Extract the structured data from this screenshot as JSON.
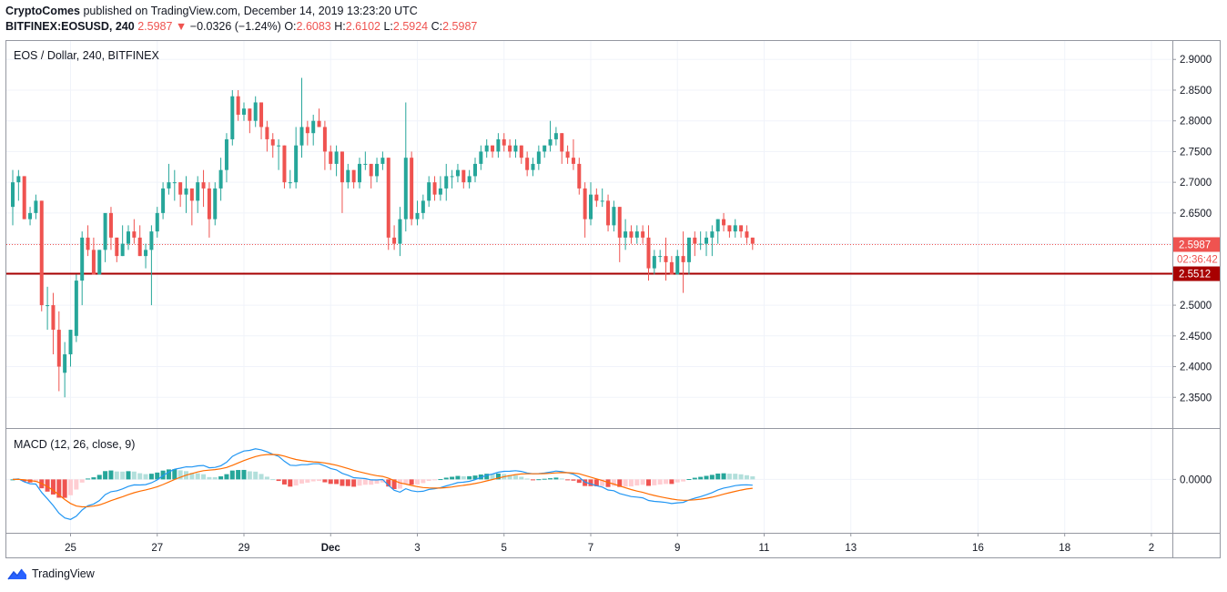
{
  "header": {
    "author": "CryptoComes",
    "published_text": "published on TradingView.com, December 14, 2019 13:23:20 UTC",
    "symbol": "BITFINEX:EOSUSD, 240",
    "last": "2.5987",
    "arrow": "▼",
    "change": "−0.0326 (−1.24%)",
    "o_label": "O:",
    "o_val": "2.6083",
    "h_label": "H:",
    "h_val": "2.6102",
    "l_label": "L:",
    "l_val": "2.5924",
    "c_label": "C:",
    "c_val": "2.5987"
  },
  "chart_data": [
    {
      "type": "candlestick",
      "title": "EOS / Dollar, 240, BITFINEX",
      "ylim": [
        2.3,
        2.93
      ],
      "y_ticks": [
        "2.9000",
        "2.8500",
        "2.8000",
        "2.7500",
        "2.7000",
        "2.6500",
        "2.6000",
        "2.5500",
        "2.5000",
        "2.4500",
        "2.4000",
        "2.3500"
      ],
      "x_ticks": [
        "25",
        "27",
        "29",
        "Dec",
        "3",
        "5",
        "7",
        "9",
        "11",
        "13",
        "16",
        "18",
        "2"
      ],
      "x_tick_index": [
        10,
        25,
        40,
        55,
        70,
        85,
        100,
        115,
        130,
        145,
        167,
        182,
        197
      ],
      "current_price": "2.5987",
      "countdown": "02:36:42",
      "support_level": "2.5512",
      "grid": true,
      "colors": {
        "up": "#26a69a",
        "down": "#ef5350",
        "support": "#a80000"
      },
      "candles_ohlc": [
        [
          2.66,
          2.72,
          2.63,
          2.7
        ],
        [
          2.7,
          2.72,
          2.67,
          2.71
        ],
        [
          2.71,
          2.71,
          2.64,
          2.64
        ],
        [
          2.64,
          2.66,
          2.63,
          2.65
        ],
        [
          2.65,
          2.68,
          2.64,
          2.67
        ],
        [
          2.67,
          2.67,
          2.49,
          2.5
        ],
        [
          2.5,
          2.53,
          2.46,
          2.5
        ],
        [
          2.5,
          2.52,
          2.42,
          2.46
        ],
        [
          2.46,
          2.49,
          2.36,
          2.4
        ],
        [
          2.39,
          2.44,
          2.35,
          2.42
        ],
        [
          2.42,
          2.45,
          2.4,
          2.46
        ],
        [
          2.45,
          2.55,
          2.44,
          2.54
        ],
        [
          2.54,
          2.62,
          2.5,
          2.61
        ],
        [
          2.61,
          2.63,
          2.58,
          2.59
        ],
        [
          2.59,
          2.61,
          2.56,
          2.55
        ],
        [
          2.55,
          2.59,
          2.55,
          2.59
        ],
        [
          2.59,
          2.64,
          2.57,
          2.65
        ],
        [
          2.65,
          2.66,
          2.59,
          2.61
        ],
        [
          2.61,
          2.61,
          2.57,
          2.58
        ],
        [
          2.58,
          2.63,
          2.58,
          2.6
        ],
        [
          2.6,
          2.63,
          2.59,
          2.62
        ],
        [
          2.62,
          2.64,
          2.6,
          2.61
        ],
        [
          2.61,
          2.63,
          2.58,
          2.58
        ],
        [
          2.58,
          2.6,
          2.56,
          2.59
        ],
        [
          2.59,
          2.63,
          2.5,
          2.62
        ],
        [
          2.62,
          2.66,
          2.61,
          2.65
        ],
        [
          2.65,
          2.7,
          2.64,
          2.69
        ],
        [
          2.69,
          2.73,
          2.68,
          2.7
        ],
        [
          2.7,
          2.72,
          2.67,
          2.7
        ],
        [
          2.7,
          2.7,
          2.66,
          2.68
        ],
        [
          2.68,
          2.71,
          2.65,
          2.69
        ],
        [
          2.69,
          2.69,
          2.63,
          2.67
        ],
        [
          2.67,
          2.71,
          2.65,
          2.7
        ],
        [
          2.7,
          2.72,
          2.66,
          2.69
        ],
        [
          2.69,
          2.7,
          2.61,
          2.64
        ],
        [
          2.64,
          2.7,
          2.63,
          2.69
        ],
        [
          2.69,
          2.74,
          2.67,
          2.72
        ],
        [
          2.72,
          2.78,
          2.7,
          2.77
        ],
        [
          2.77,
          2.85,
          2.76,
          2.84
        ],
        [
          2.84,
          2.85,
          2.8,
          2.81
        ],
        [
          2.81,
          2.83,
          2.8,
          2.82
        ],
        [
          2.82,
          2.82,
          2.78,
          2.8
        ],
        [
          2.8,
          2.84,
          2.79,
          2.83
        ],
        [
          2.83,
          2.83,
          2.77,
          2.79
        ],
        [
          2.79,
          2.8,
          2.75,
          2.77
        ],
        [
          2.77,
          2.78,
          2.74,
          2.76
        ],
        [
          2.76,
          2.77,
          2.72,
          2.76
        ],
        [
          2.76,
          2.76,
          2.69,
          2.7
        ],
        [
          2.7,
          2.72,
          2.69,
          2.7
        ],
        [
          2.7,
          2.79,
          2.69,
          2.76
        ],
        [
          2.76,
          2.87,
          2.74,
          2.79
        ],
        [
          2.79,
          2.8,
          2.76,
          2.78
        ],
        [
          2.78,
          2.81,
          2.76,
          2.8
        ],
        [
          2.8,
          2.82,
          2.79,
          2.79
        ],
        [
          2.79,
          2.8,
          2.72,
          2.75
        ],
        [
          2.75,
          2.76,
          2.72,
          2.73
        ],
        [
          2.73,
          2.76,
          2.71,
          2.75
        ],
        [
          2.75,
          2.75,
          2.65,
          2.7
        ],
        [
          2.7,
          2.73,
          2.69,
          2.72
        ],
        [
          2.72,
          2.72,
          2.69,
          2.7
        ],
        [
          2.7,
          2.74,
          2.69,
          2.73
        ],
        [
          2.73,
          2.75,
          2.72,
          2.73
        ],
        [
          2.73,
          2.73,
          2.69,
          2.71
        ],
        [
          2.71,
          2.74,
          2.7,
          2.73
        ],
        [
          2.73,
          2.75,
          2.72,
          2.74
        ],
        [
          2.74,
          2.74,
          2.59,
          2.61
        ],
        [
          2.61,
          2.63,
          2.59,
          2.6
        ],
        [
          2.6,
          2.66,
          2.58,
          2.64
        ],
        [
          2.64,
          2.83,
          2.62,
          2.74
        ],
        [
          2.74,
          2.75,
          2.63,
          2.64
        ],
        [
          2.64,
          2.67,
          2.63,
          2.65
        ],
        [
          2.65,
          2.68,
          2.64,
          2.67
        ],
        [
          2.67,
          2.71,
          2.66,
          2.7
        ],
        [
          2.7,
          2.71,
          2.67,
          2.68
        ],
        [
          2.68,
          2.71,
          2.67,
          2.69
        ],
        [
          2.69,
          2.73,
          2.67,
          2.71
        ],
        [
          2.71,
          2.72,
          2.69,
          2.71
        ],
        [
          2.71,
          2.73,
          2.7,
          2.72
        ],
        [
          2.72,
          2.72,
          2.69,
          2.7
        ],
        [
          2.7,
          2.72,
          2.69,
          2.71
        ],
        [
          2.71,
          2.74,
          2.7,
          2.73
        ],
        [
          2.73,
          2.76,
          2.72,
          2.75
        ],
        [
          2.75,
          2.77,
          2.74,
          2.76
        ],
        [
          2.76,
          2.76,
          2.74,
          2.75
        ],
        [
          2.75,
          2.78,
          2.74,
          2.77
        ],
        [
          2.77,
          2.78,
          2.75,
          2.76
        ],
        [
          2.76,
          2.77,
          2.74,
          2.75
        ],
        [
          2.75,
          2.77,
          2.74,
          2.76
        ],
        [
          2.76,
          2.76,
          2.73,
          2.74
        ],
        [
          2.74,
          2.75,
          2.71,
          2.72
        ],
        [
          2.72,
          2.74,
          2.71,
          2.73
        ],
        [
          2.73,
          2.76,
          2.72,
          2.75
        ],
        [
          2.75,
          2.76,
          2.74,
          2.76
        ],
        [
          2.76,
          2.8,
          2.75,
          2.77
        ],
        [
          2.77,
          2.79,
          2.76,
          2.78
        ],
        [
          2.78,
          2.78,
          2.73,
          2.75
        ],
        [
          2.75,
          2.76,
          2.73,
          2.74
        ],
        [
          2.74,
          2.77,
          2.72,
          2.73
        ],
        [
          2.73,
          2.74,
          2.68,
          2.69
        ],
        [
          2.69,
          2.7,
          2.61,
          2.64
        ],
        [
          2.64,
          2.7,
          2.63,
          2.68
        ],
        [
          2.68,
          2.69,
          2.66,
          2.67
        ],
        [
          2.67,
          2.69,
          2.66,
          2.67
        ],
        [
          2.67,
          2.68,
          2.62,
          2.63
        ],
        [
          2.63,
          2.67,
          2.62,
          2.66
        ],
        [
          2.66,
          2.66,
          2.57,
          2.61
        ],
        [
          2.61,
          2.64,
          2.59,
          2.62
        ],
        [
          2.62,
          2.63,
          2.6,
          2.61
        ],
        [
          2.61,
          2.63,
          2.6,
          2.62
        ],
        [
          2.62,
          2.63,
          2.6,
          2.61
        ],
        [
          2.61,
          2.63,
          2.54,
          2.56
        ],
        [
          2.56,
          2.59,
          2.55,
          2.58
        ],
        [
          2.58,
          2.59,
          2.57,
          2.58
        ],
        [
          2.58,
          2.61,
          2.54,
          2.57
        ],
        [
          2.57,
          2.58,
          2.55,
          2.55
        ],
        [
          2.55,
          2.59,
          2.55,
          2.58
        ],
        [
          2.58,
          2.62,
          2.52,
          2.57
        ],
        [
          2.57,
          2.61,
          2.55,
          2.61
        ],
        [
          2.61,
          2.62,
          2.58,
          2.6
        ],
        [
          2.6,
          2.62,
          2.59,
          2.6
        ],
        [
          2.6,
          2.62,
          2.58,
          2.61
        ],
        [
          2.61,
          2.63,
          2.58,
          2.62
        ],
        [
          2.62,
          2.64,
          2.6,
          2.64
        ],
        [
          2.64,
          2.65,
          2.62,
          2.63
        ],
        [
          2.63,
          2.63,
          2.61,
          2.62
        ],
        [
          2.62,
          2.64,
          2.61,
          2.63
        ],
        [
          2.63,
          2.63,
          2.61,
          2.62
        ],
        [
          2.62,
          2.63,
          2.6,
          2.61
        ],
        [
          2.61,
          2.61,
          2.59,
          2.6
        ]
      ]
    },
    {
      "type": "histogram-line",
      "title": "MACD (12, 26, close, 9)",
      "y_ticks": [
        "0.0000"
      ],
      "ylim": [
        -0.09,
        0.085
      ],
      "colors": {
        "macd": "#2196f3",
        "signal": "#ff6d00",
        "hist_up_strong": "#26a69a",
        "hist_up_weak": "#b2dfdb",
        "hist_down_strong": "#ef5350",
        "hist_down_weak": "#ffcdd2"
      },
      "macd": [],
      "signal": []
    }
  ],
  "footer": {
    "brand": "TradingView"
  }
}
